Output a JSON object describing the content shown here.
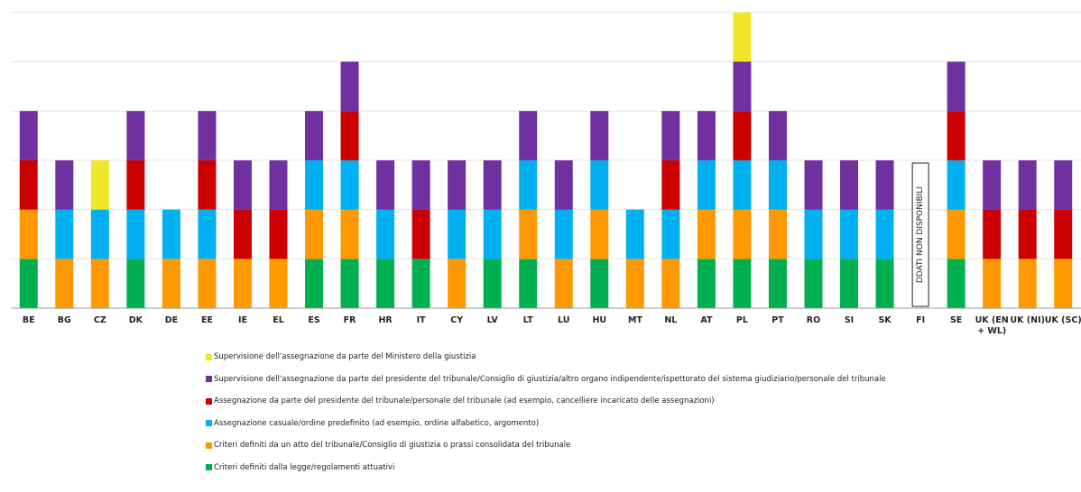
{
  "chart_data": {
    "type": "bar",
    "stacked": true,
    "title": "",
    "xlabel": "",
    "ylabel": "",
    "ylim": [
      0,
      6
    ],
    "grid": true,
    "legend_position": "bottom",
    "categories": [
      "BE",
      "BG",
      "CZ",
      "DK",
      "DE",
      "EE",
      "IE",
      "EL",
      "ES",
      "FR",
      "HR",
      "IT",
      "CY",
      "LV",
      "LT",
      "LU",
      "HU",
      "MT",
      "NL",
      "AT",
      "PL",
      "PT",
      "RO",
      "SI",
      "SK",
      "FI",
      "SE",
      "UK (EN + WL)",
      "UK (NI)",
      "UK (SC)"
    ],
    "series": [
      {
        "name": "Criteri definiti dalla legge/regolamenti attuativi",
        "color": "#00b050",
        "values": [
          1,
          0,
          0,
          1,
          0,
          0,
          0,
          0,
          1,
          1,
          1,
          1,
          0,
          1,
          1,
          0,
          1,
          0,
          0,
          1,
          1,
          1,
          1,
          1,
          1,
          0,
          1,
          0,
          0,
          0
        ]
      },
      {
        "name": "Criteri definiti da un atto del tribunale/Consiglio di giustizia o prassi consolidata del tribunale",
        "color": "#ff9900",
        "values": [
          1,
          1,
          1,
          0,
          1,
          1,
          1,
          1,
          1,
          1,
          0,
          0,
          1,
          0,
          1,
          1,
          1,
          1,
          1,
          1,
          1,
          1,
          0,
          0,
          0,
          0,
          1,
          1,
          1,
          1
        ]
      },
      {
        "name": "Assegnazione casuale/ordine predefinito (ad esempio, ordine alfabetico, argomento)",
        "color": "#00b0f0",
        "values": [
          0,
          1,
          1,
          1,
          1,
          1,
          0,
          0,
          1,
          1,
          1,
          0,
          1,
          1,
          1,
          1,
          1,
          1,
          1,
          1,
          1,
          1,
          1,
          1,
          1,
          0,
          1,
          0,
          0,
          0
        ]
      },
      {
        "name": "Assegnazione da parte del presidente del tribunale/personale del tribunale (ad esempio, cancelliere incaricato delle assegnazioni)",
        "color": "#cc0000",
        "values": [
          1,
          0,
          0,
          1,
          0,
          1,
          1,
          1,
          0,
          1,
          0,
          1,
          0,
          0,
          0,
          0,
          0,
          0,
          1,
          0,
          1,
          0,
          0,
          0,
          0,
          0,
          1,
          1,
          1,
          1
        ]
      },
      {
        "name": "Supervisione dell'assegnazione da parte del presidente del tribunale/Consiglio di giustizia/altro organo indipendente/ispettorato del sistema giudiziario/personale del tribunale",
        "color": "#7030a0",
        "values": [
          1,
          1,
          0,
          1,
          0,
          1,
          1,
          1,
          1,
          1,
          1,
          1,
          1,
          1,
          1,
          1,
          1,
          0,
          1,
          1,
          1,
          1,
          1,
          1,
          1,
          0,
          1,
          1,
          1,
          1
        ]
      },
      {
        "name": "Supervisione dell'assegnazione da parte del Ministero della giustizia",
        "color": "#f0e628",
        "values": [
          0,
          0,
          1,
          0,
          0,
          0,
          0,
          0,
          0,
          0,
          0,
          0,
          0,
          0,
          0,
          0,
          0,
          0,
          0,
          0,
          1,
          0,
          0,
          0,
          0,
          0,
          0,
          0,
          0,
          0
        ]
      }
    ],
    "annotations": [
      {
        "category": "FI",
        "text": "DDATI NON DISPONIBILI"
      }
    ]
  }
}
